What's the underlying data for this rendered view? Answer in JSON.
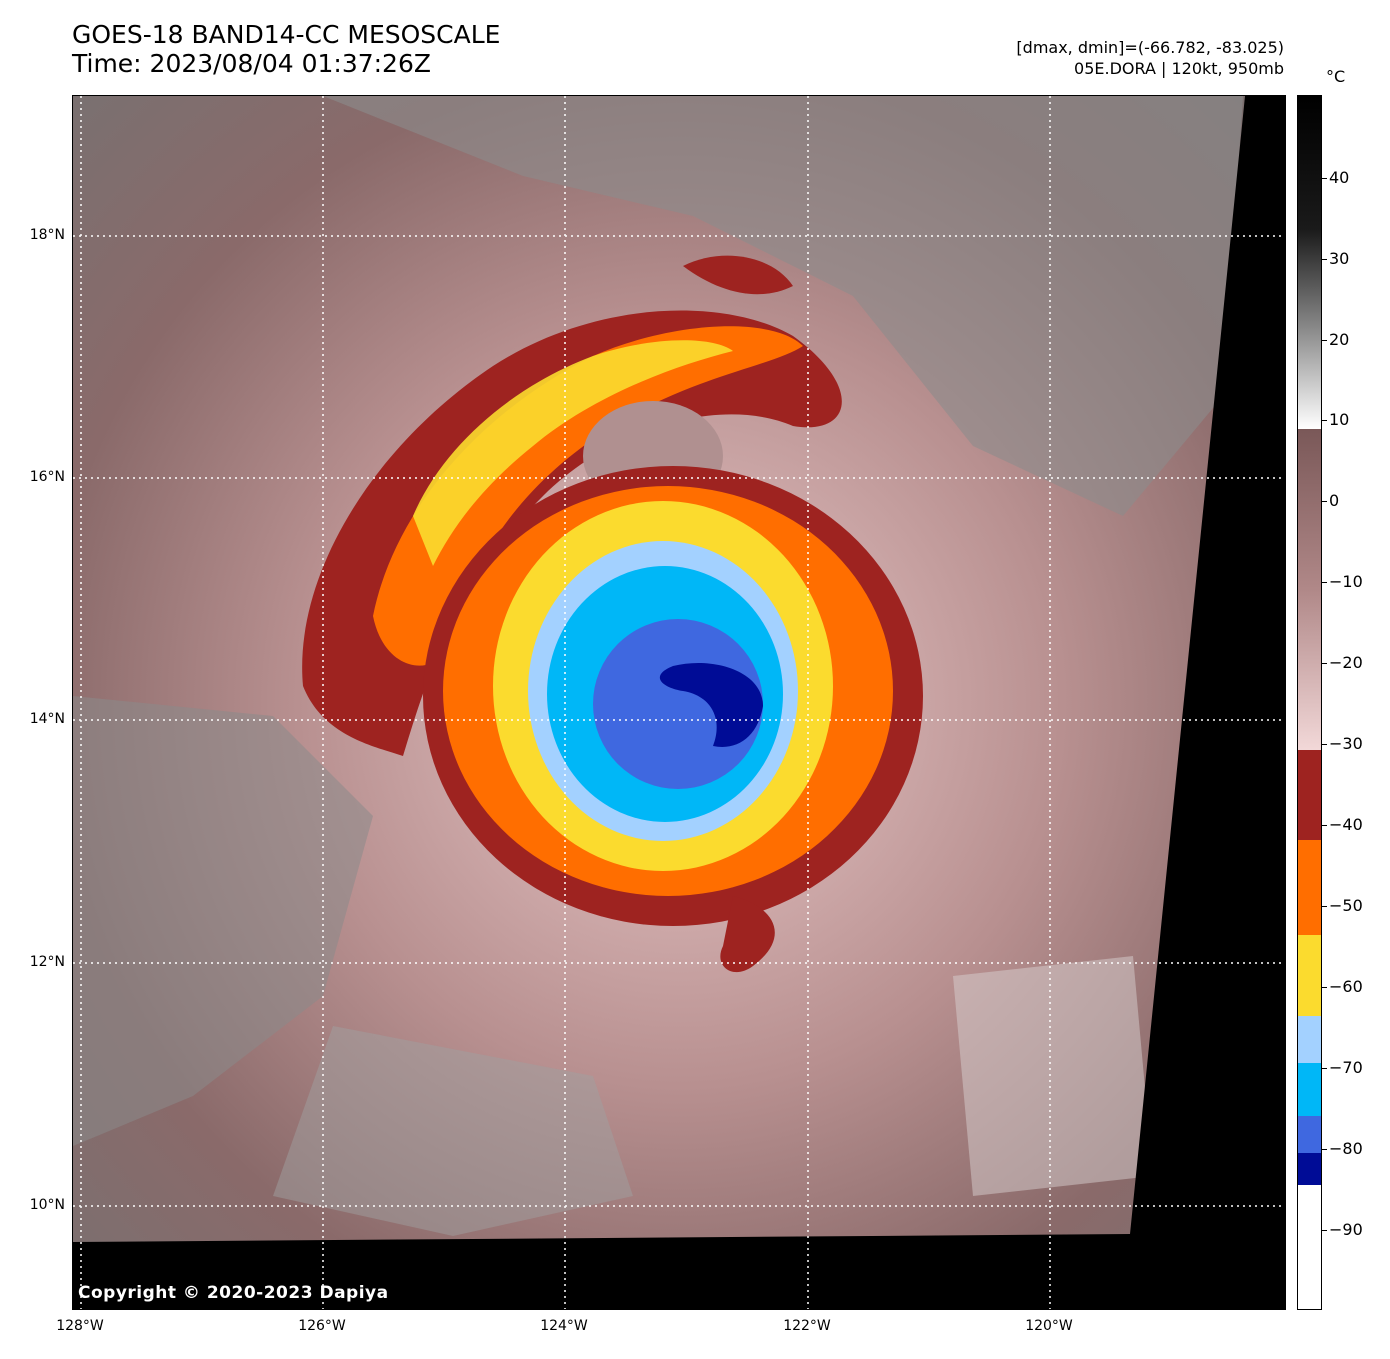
{
  "header": {
    "title_line1": "GOES-18 BAND14-CC MESOSCALE",
    "title_line2": "Time: 2023/08/04 01:37:26Z",
    "info_line1": "[dmax, dmin]=(-66.782, -83.025)",
    "info_line2": "05E.DORA | 120kt, 950mb"
  },
  "map": {
    "latitude_labels": [
      "18°N",
      "16°N",
      "14°N",
      "12°N",
      "10°N"
    ],
    "longitude_labels": [
      "128°W",
      "126°W",
      "124°W",
      "122°W",
      "120°W"
    ],
    "copyright": "Copyright © 2020-2023 Dapiya"
  },
  "colorbar": {
    "unit": "°C",
    "tick_labels": [
      "40",
      "30",
      "20",
      "10",
      "0",
      "−10",
      "−20",
      "−30",
      "−40",
      "−50",
      "−60",
      "−70",
      "−80",
      "−90"
    ],
    "color_bands": [
      {
        "label": "−30 to −40",
        "color": "#9e2320"
      },
      {
        "label": "−40 to −50",
        "color": "#ff6e00"
      },
      {
        "label": "−50 to −60",
        "color": "#fbdb2e"
      },
      {
        "label": "−60 to −65",
        "color": "#a3d1ff"
      },
      {
        "label": "−65 to −75",
        "color": "#00b7f7"
      },
      {
        "label": "−75 to −80",
        "color": "#3f68e0"
      },
      {
        "label": "−80 to −85",
        "color": "#000c96"
      },
      {
        "label": "below −85",
        "color": "#ffffff"
      }
    ]
  }
}
